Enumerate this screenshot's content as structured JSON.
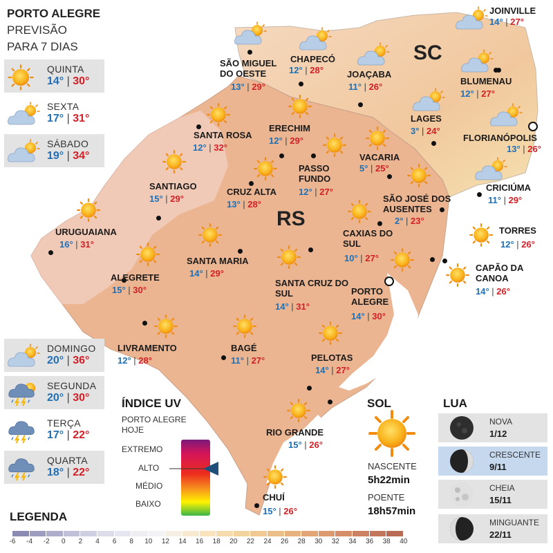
{
  "header": {
    "line1": "PORTO ALEGRE",
    "line2": "PREVISÃO",
    "line3": "PARA 7 DIAS"
  },
  "forecast": [
    {
      "day": "QUINTA",
      "min": "14°",
      "max": "30°",
      "icon": "sun-icon"
    },
    {
      "day": "SEXTA",
      "min": "17°",
      "max": "31°",
      "icon": "partly-cloudy-icon"
    },
    {
      "day": "SÁBADO",
      "min": "19°",
      "max": "34°",
      "icon": "partly-cloudy-icon"
    },
    {
      "day": "DOMINGO",
      "min": "20°",
      "max": "36°",
      "icon": "partly-cloudy-icon"
    },
    {
      "day": "SEGUNDA",
      "min": "20°",
      "max": "30°",
      "icon": "sun-storm-icon"
    },
    {
      "day": "TERÇA",
      "min": "17°",
      "max": "22°",
      "icon": "storm-icon"
    },
    {
      "day": "QUARTA",
      "min": "18°",
      "max": "22°",
      "icon": "storm-icon"
    }
  ],
  "states": {
    "sc": "SC",
    "rs": "RS"
  },
  "cities": [
    {
      "name": "JOINVILLE",
      "min": "14°",
      "max": "27°",
      "icon": "partly-cloudy-icon"
    },
    {
      "name": "SÃO MIGUEL DO OESTE",
      "min": "13°",
      "max": "29°",
      "icon": "partly-cloudy-icon"
    },
    {
      "name": "CHAPECÓ",
      "min": "12°",
      "max": "28°",
      "icon": "partly-cloudy-icon"
    },
    {
      "name": "JOAÇABA",
      "min": "11°",
      "max": "26°",
      "icon": "partly-cloudy-icon"
    },
    {
      "name": "BLUMENAU",
      "min": "12°",
      "max": "27°",
      "icon": "partly-cloudy-icon"
    },
    {
      "name": "LAGES",
      "min": "3°",
      "max": "24°",
      "icon": "partly-cloudy-icon"
    },
    {
      "name": "FLORIANÓPOLIS",
      "min": "13°",
      "max": "26°",
      "icon": "partly-cloudy-icon"
    },
    {
      "name": "SANTA ROSA",
      "min": "12°",
      "max": "32°",
      "icon": "sun-icon"
    },
    {
      "name": "ERECHIM",
      "min": "12°",
      "max": "29°",
      "icon": "sun-icon"
    },
    {
      "name": "VACARIA",
      "min": "5°",
      "max": "25°",
      "icon": "sun-icon"
    },
    {
      "name": "PASSO FUNDO",
      "min": "12°",
      "max": "27°",
      "icon": "sun-icon"
    },
    {
      "name": "CRICIÚMA",
      "min": "11°",
      "max": "29°",
      "icon": "partly-cloudy-icon"
    },
    {
      "name": "SANTIAGO",
      "min": "15°",
      "max": "29°",
      "icon": "sun-icon"
    },
    {
      "name": "CRUZ ALTA",
      "min": "13°",
      "max": "28°",
      "icon": "sun-icon"
    },
    {
      "name": "SÃO JOSÉ DOS AUSENTES",
      "min": "2°",
      "max": "23°",
      "icon": "sun-icon"
    },
    {
      "name": "URUGUAIANA",
      "min": "16°",
      "max": "31°",
      "icon": "sun-icon"
    },
    {
      "name": "CAXIAS DO SUL",
      "min": "10°",
      "max": "27°",
      "icon": "sun-icon"
    },
    {
      "name": "TORRES",
      "min": "12°",
      "max": "26°",
      "icon": "sun-icon"
    },
    {
      "name": "SANTA MARIA",
      "min": "14°",
      "max": "29°",
      "icon": "sun-icon"
    },
    {
      "name": "ALEGRETE",
      "min": "15°",
      "max": "30°",
      "icon": "sun-icon"
    },
    {
      "name": "CAPÃO DA CANOA",
      "min": "14°",
      "max": "26°",
      "icon": "sun-icon"
    },
    {
      "name": "SANTA CRUZ DO SUL",
      "min": "14°",
      "max": "31°",
      "icon": "sun-icon"
    },
    {
      "name": "PORTO ALEGRE",
      "min": "14°",
      "max": "30°",
      "icon": "sun-icon"
    },
    {
      "name": "LIVRAMENTO",
      "min": "12°",
      "max": "28°",
      "icon": "sun-icon"
    },
    {
      "name": "BAGÉ",
      "min": "11°",
      "max": "27°",
      "icon": "sun-icon"
    },
    {
      "name": "PELOTAS",
      "min": "14°",
      "max": "27°",
      "icon": "sun-icon"
    },
    {
      "name": "RIO GRANDE",
      "min": "15°",
      "max": "26°",
      "icon": "sun-icon"
    },
    {
      "name": "CHUÍ",
      "min": "15°",
      "max": "26°",
      "icon": "sun-icon"
    }
  ],
  "uv": {
    "title": "ÍNDICE UV",
    "subtitle1": "PORTO ALEGRE",
    "subtitle2": "HOJE",
    "levels": [
      "EXTREMO",
      "ALTO",
      "MÉDIO",
      "BAIXO"
    ],
    "current_level": "ALTO"
  },
  "sun": {
    "title": "SOL",
    "sunrise_label": "NASCENTE",
    "sunrise": "5h22min",
    "sunset_label": "POENTE",
    "sunset": "18h57min"
  },
  "moon": {
    "title": "LUA",
    "phases": [
      {
        "phase": "NOVA",
        "date": "1/12"
      },
      {
        "phase": "CRESCENTE",
        "date": "9/11"
      },
      {
        "phase": "CHEIA",
        "date": "15/11"
      },
      {
        "phase": "MINGUANTE",
        "date": "22/11"
      }
    ]
  },
  "legend": {
    "title": "LEGENDA",
    "ticks": [
      "-6",
      "-4",
      "-2",
      "0",
      "2",
      "4",
      "6",
      "8",
      "10",
      "12",
      "14",
      "16",
      "18",
      "20",
      "22",
      "24",
      "26",
      "28",
      "30",
      "32",
      "34",
      "36",
      "38",
      "40"
    ],
    "colors": [
      "#8a8ab2",
      "#9c9cc0",
      "#aeaecc",
      "#c0c0d8",
      "#cfcfe2",
      "#dcdcea",
      "#e6e6f0",
      "#eeeef3",
      "#f3f3f5",
      "#f6f0e4",
      "#f7ead0",
      "#f8e3bc",
      "#f6dcac",
      "#f3d49e",
      "#f0ca92",
      "#ecbf88",
      "#e7b27e",
      "#e2a676",
      "#dc9a6e",
      "#d58e68",
      "#cc8262",
      "#c3765c",
      "#ba6b56"
    ]
  }
}
